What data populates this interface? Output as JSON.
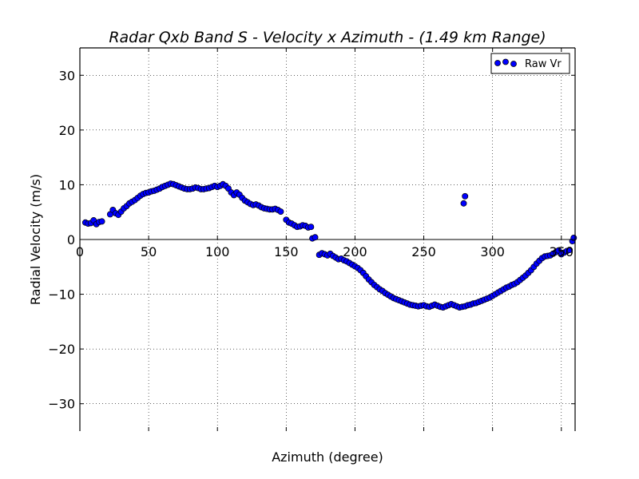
{
  "chart_data": {
    "type": "scatter",
    "title": "Radar Qxb Band S - Velocity x Azimuth - (1.49 km Range)",
    "xlabel": "Azimuth (degree)",
    "ylabel": "Radial Velocity (m/s)",
    "xlim": [
      0,
      360
    ],
    "ylim": [
      -35,
      35
    ],
    "xticks": [
      0,
      50,
      100,
      150,
      200,
      250,
      300,
      350
    ],
    "yticks": [
      30,
      20,
      10,
      0,
      -10,
      -20,
      -30
    ],
    "xtick_labels": [
      "0",
      "50",
      "100",
      "150",
      "200",
      "250",
      "300",
      "350"
    ],
    "ytick_labels": [
      "30",
      "20",
      "10",
      "0",
      "−10",
      "−20",
      "−30"
    ],
    "grid": true,
    "legend_position": "top-right",
    "colors": {
      "marker_fill": "#0000ff",
      "marker_edge": "#000000"
    },
    "series": [
      {
        "name": "Raw Vr",
        "points": [
          [
            4,
            3.1
          ],
          [
            6,
            2.9
          ],
          [
            8,
            3.0
          ],
          [
            10,
            3.5
          ],
          [
            12,
            2.8
          ],
          [
            14,
            3.2
          ],
          [
            16,
            3.3
          ],
          [
            22,
            4.6
          ],
          [
            24,
            5.4
          ],
          [
            26,
            4.8
          ],
          [
            28,
            4.5
          ],
          [
            30,
            5.1
          ],
          [
            32,
            5.7
          ],
          [
            34,
            6.1
          ],
          [
            36,
            6.6
          ],
          [
            38,
            6.9
          ],
          [
            40,
            7.2
          ],
          [
            42,
            7.6
          ],
          [
            44,
            8.0
          ],
          [
            46,
            8.3
          ],
          [
            48,
            8.5
          ],
          [
            50,
            8.6
          ],
          [
            52,
            8.8
          ],
          [
            54,
            8.9
          ],
          [
            56,
            9.1
          ],
          [
            58,
            9.3
          ],
          [
            60,
            9.6
          ],
          [
            62,
            9.8
          ],
          [
            64,
            10.0
          ],
          [
            66,
            10.2
          ],
          [
            68,
            10.1
          ],
          [
            70,
            9.9
          ],
          [
            72,
            9.7
          ],
          [
            74,
            9.5
          ],
          [
            76,
            9.3
          ],
          [
            78,
            9.2
          ],
          [
            80,
            9.2
          ],
          [
            82,
            9.3
          ],
          [
            84,
            9.5
          ],
          [
            86,
            9.4
          ],
          [
            88,
            9.2
          ],
          [
            90,
            9.2
          ],
          [
            92,
            9.3
          ],
          [
            94,
            9.4
          ],
          [
            96,
            9.6
          ],
          [
            98,
            9.8
          ],
          [
            100,
            9.6
          ],
          [
            102,
            9.8
          ],
          [
            104,
            10.1
          ],
          [
            106,
            9.8
          ],
          [
            108,
            9.3
          ],
          [
            110,
            8.6
          ],
          [
            112,
            8.1
          ],
          [
            114,
            8.6
          ],
          [
            116,
            8.2
          ],
          [
            118,
            7.6
          ],
          [
            120,
            7.1
          ],
          [
            122,
            6.8
          ],
          [
            124,
            6.5
          ],
          [
            126,
            6.3
          ],
          [
            128,
            6.4
          ],
          [
            130,
            6.2
          ],
          [
            132,
            5.9
          ],
          [
            134,
            5.7
          ],
          [
            136,
            5.6
          ],
          [
            138,
            5.5
          ],
          [
            140,
            5.5
          ],
          [
            142,
            5.6
          ],
          [
            144,
            5.4
          ],
          [
            146,
            5.1
          ],
          [
            150,
            3.6
          ],
          [
            152,
            3.1
          ],
          [
            154,
            2.9
          ],
          [
            156,
            2.6
          ],
          [
            158,
            2.3
          ],
          [
            160,
            2.4
          ],
          [
            162,
            2.6
          ],
          [
            164,
            2.5
          ],
          [
            166,
            2.2
          ],
          [
            168,
            2.3
          ],
          [
            169,
            0.2
          ],
          [
            171,
            0.4
          ],
          [
            174,
            -2.8
          ],
          [
            176,
            -2.5
          ],
          [
            178,
            -2.7
          ],
          [
            180,
            -2.9
          ],
          [
            182,
            -2.6
          ],
          [
            184,
            -3.0
          ],
          [
            186,
            -3.3
          ],
          [
            188,
            -3.6
          ],
          [
            190,
            -3.5
          ],
          [
            192,
            -3.8
          ],
          [
            194,
            -4.0
          ],
          [
            196,
            -4.3
          ],
          [
            198,
            -4.6
          ],
          [
            200,
            -4.9
          ],
          [
            202,
            -5.2
          ],
          [
            204,
            -5.6
          ],
          [
            206,
            -6.1
          ],
          [
            208,
            -6.7
          ],
          [
            210,
            -7.3
          ],
          [
            212,
            -7.8
          ],
          [
            214,
            -8.3
          ],
          [
            216,
            -8.7
          ],
          [
            218,
            -9.1
          ],
          [
            220,
            -9.4
          ],
          [
            222,
            -9.8
          ],
          [
            224,
            -10.1
          ],
          [
            226,
            -10.4
          ],
          [
            228,
            -10.7
          ],
          [
            230,
            -10.9
          ],
          [
            232,
            -11.1
          ],
          [
            234,
            -11.3
          ],
          [
            236,
            -11.5
          ],
          [
            238,
            -11.7
          ],
          [
            240,
            -11.9
          ],
          [
            242,
            -12.0
          ],
          [
            244,
            -12.1
          ],
          [
            246,
            -12.2
          ],
          [
            248,
            -12.1
          ],
          [
            250,
            -12.0
          ],
          [
            252,
            -12.2
          ],
          [
            254,
            -12.3
          ],
          [
            256,
            -12.1
          ],
          [
            258,
            -11.9
          ],
          [
            260,
            -12.1
          ],
          [
            262,
            -12.3
          ],
          [
            264,
            -12.4
          ],
          [
            266,
            -12.2
          ],
          [
            268,
            -12.0
          ],
          [
            270,
            -11.8
          ],
          [
            272,
            -12.0
          ],
          [
            274,
            -12.2
          ],
          [
            276,
            -12.4
          ],
          [
            278,
            -12.3
          ],
          [
            280,
            -12.2
          ],
          [
            282,
            -12.0
          ],
          [
            284,
            -11.9
          ],
          [
            286,
            -11.7
          ],
          [
            288,
            -11.6
          ],
          [
            290,
            -11.4
          ],
          [
            292,
            -11.2
          ],
          [
            294,
            -11.0
          ],
          [
            296,
            -10.8
          ],
          [
            298,
            -10.6
          ],
          [
            300,
            -10.3
          ],
          [
            302,
            -10.0
          ],
          [
            304,
            -9.7
          ],
          [
            306,
            -9.4
          ],
          [
            308,
            -9.1
          ],
          [
            310,
            -8.8
          ],
          [
            312,
            -8.6
          ],
          [
            314,
            -8.3
          ],
          [
            316,
            -8.1
          ],
          [
            318,
            -7.8
          ],
          [
            320,
            -7.4
          ],
          [
            322,
            -7.0
          ],
          [
            324,
            -6.6
          ],
          [
            326,
            -6.1
          ],
          [
            328,
            -5.6
          ],
          [
            330,
            -5.0
          ],
          [
            332,
            -4.4
          ],
          [
            334,
            -3.9
          ],
          [
            336,
            -3.4
          ],
          [
            338,
            -3.1
          ],
          [
            340,
            -3.0
          ],
          [
            342,
            -2.9
          ],
          [
            344,
            -2.6
          ],
          [
            346,
            -2.3
          ],
          [
            348,
            -2.0
          ],
          [
            350,
            -2.7
          ],
          [
            352,
            -2.4
          ],
          [
            354,
            -2.1
          ],
          [
            356,
            -1.9
          ],
          [
            358,
            -0.3
          ],
          [
            359,
            0.3
          ],
          [
            279,
            6.6
          ],
          [
            280,
            7.9
          ]
        ]
      }
    ]
  }
}
